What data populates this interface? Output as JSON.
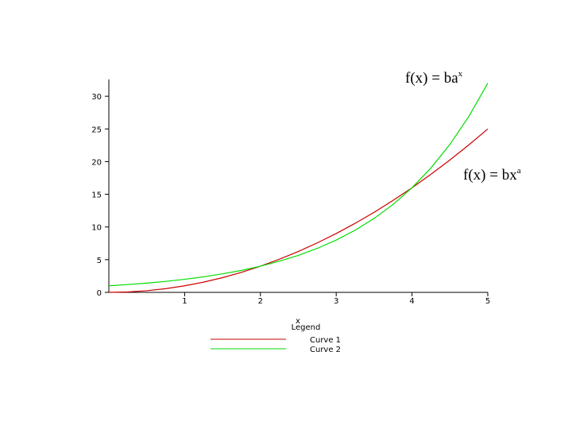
{
  "chart_data": {
    "type": "line",
    "x_label": "x",
    "legend_title": "Legend",
    "annotations": [
      {
        "text": "f(x) = ba",
        "sup": "x"
      },
      {
        "text": "f(x) = bx",
        "sup": "a"
      }
    ],
    "x": [
      0,
      0.25,
      0.5,
      0.75,
      1,
      1.25,
      1.5,
      1.75,
      2,
      2.25,
      2.5,
      2.75,
      3,
      3.25,
      3.5,
      3.75,
      4,
      4.25,
      4.5,
      4.75,
      5
    ],
    "series": [
      {
        "name": "Curve 1",
        "color": "#cc0000",
        "values": [
          0,
          0.0625,
          0.25,
          0.5625,
          1,
          1.5625,
          2.25,
          3.0625,
          4,
          5.0625,
          6.25,
          7.5625,
          9,
          10.5625,
          12.25,
          14.0625,
          16,
          18.0625,
          20.25,
          22.5625,
          25
        ]
      },
      {
        "name": "Curve 2",
        "color": "#00dd00",
        "values": [
          1,
          1.19,
          1.41,
          1.68,
          2,
          2.38,
          2.83,
          3.36,
          4,
          4.76,
          5.66,
          6.73,
          8,
          9.51,
          11.31,
          13.45,
          16,
          19.03,
          22.63,
          26.91,
          32
        ]
      }
    ],
    "xlim": [
      0,
      5
    ],
    "xticks": [
      1,
      2,
      3,
      4,
      5
    ],
    "ylim": [
      0,
      32
    ],
    "yticks": [
      0,
      5,
      10,
      15,
      20,
      25,
      30
    ],
    "grid": false
  }
}
